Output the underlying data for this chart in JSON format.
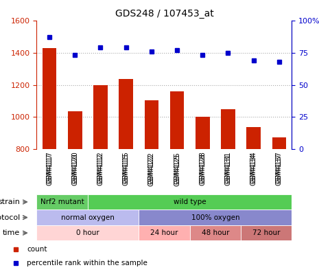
{
  "title": "GDS248 / 107453_at",
  "samples": [
    "GSM4117",
    "GSM4120",
    "GSM4112",
    "GSM4115",
    "GSM4122",
    "GSM4125",
    "GSM4128",
    "GSM4131",
    "GSM4134",
    "GSM4137"
  ],
  "counts": [
    1430,
    1035,
    1200,
    1235,
    1105,
    1160,
    1000,
    1050,
    940,
    875
  ],
  "percentiles": [
    87,
    73,
    79,
    79,
    76,
    77,
    73,
    75,
    69,
    68
  ],
  "bar_color": "#cc2200",
  "dot_color": "#0000cc",
  "ylim_left": [
    800,
    1600
  ],
  "ylim_right": [
    0,
    100
  ],
  "yticks_left": [
    800,
    1000,
    1200,
    1400,
    1600
  ],
  "yticks_right": [
    0,
    25,
    50,
    75,
    100
  ],
  "grid_yticks": [
    1000,
    1200,
    1400
  ],
  "grid_color": "#aaaaaa",
  "strain_labels": [
    {
      "text": "Nrf2 mutant",
      "start": 0,
      "end": 2,
      "color": "#66cc66"
    },
    {
      "text": "wild type",
      "start": 2,
      "end": 10,
      "color": "#55cc55"
    }
  ],
  "protocol_labels": [
    {
      "text": "normal oxygen",
      "start": 0,
      "end": 4,
      "color": "#bbbbee"
    },
    {
      "text": "100% oxygen",
      "start": 4,
      "end": 10,
      "color": "#8888cc"
    }
  ],
  "time_labels": [
    {
      "text": "0 hour",
      "start": 0,
      "end": 4,
      "color": "#ffd5d5"
    },
    {
      "text": "24 hour",
      "start": 4,
      "end": 6,
      "color": "#ffb0b0"
    },
    {
      "text": "48 hour",
      "start": 6,
      "end": 8,
      "color": "#dd8888"
    },
    {
      "text": "72 hour",
      "start": 8,
      "end": 10,
      "color": "#cc7777"
    }
  ],
  "xaxis_bg": "#cccccc",
  "bg_color": "#ffffff"
}
